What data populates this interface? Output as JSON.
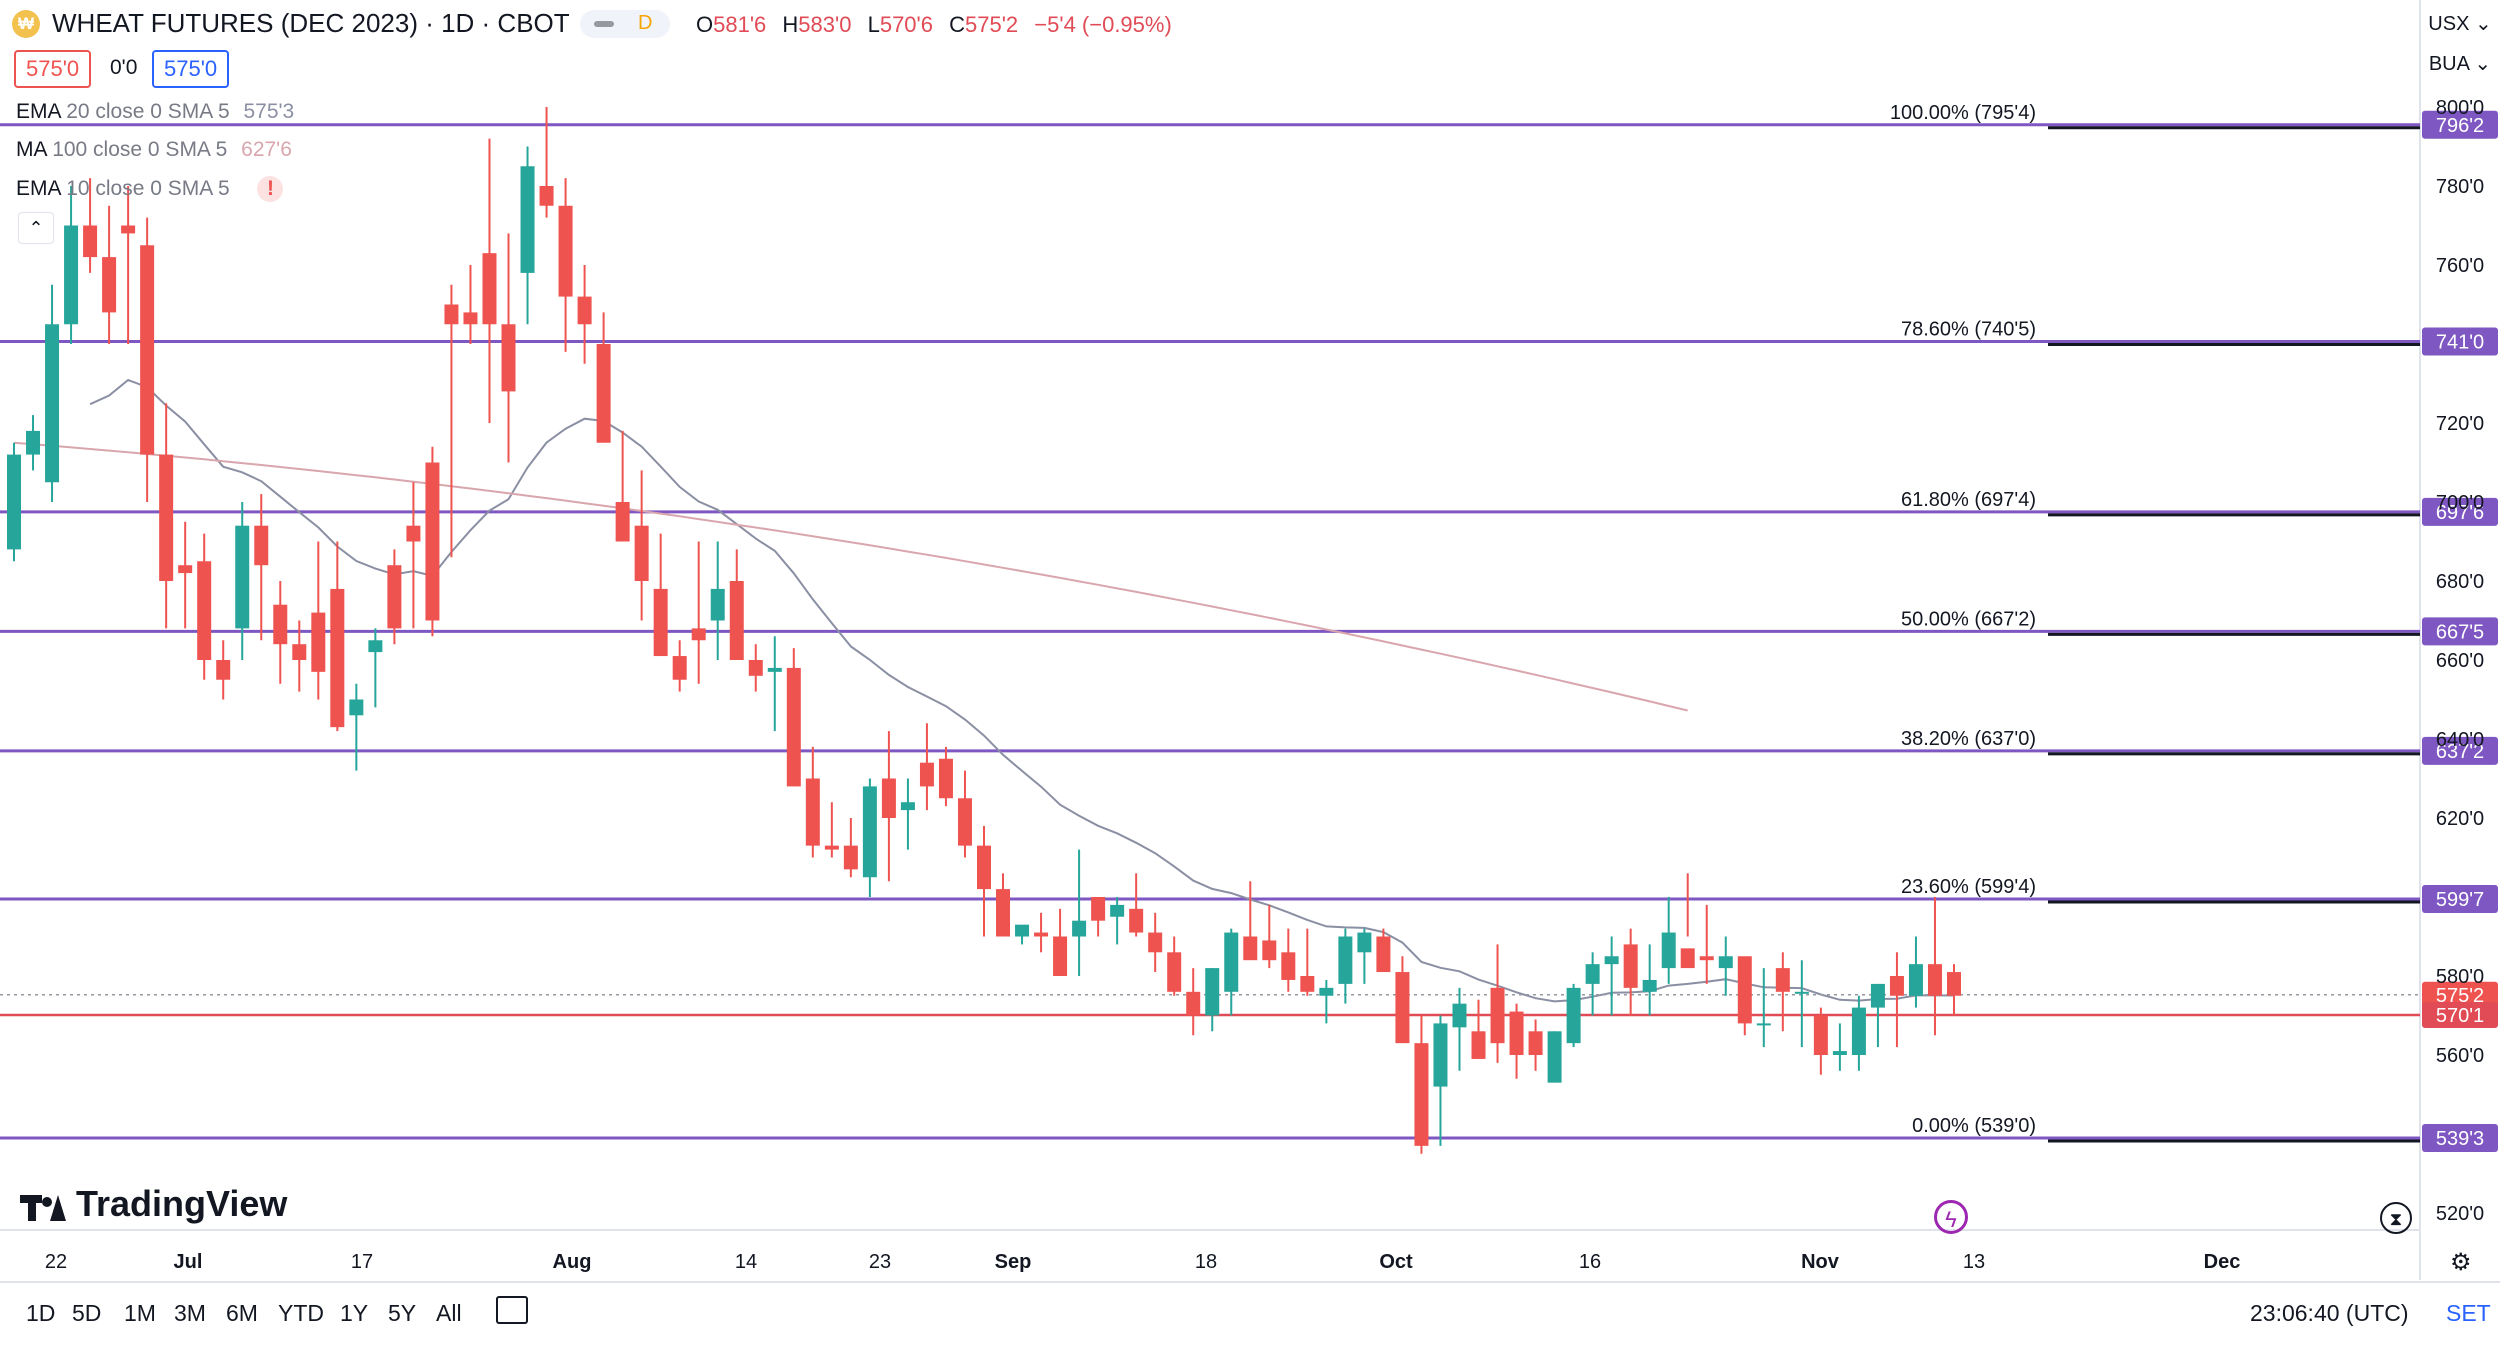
{
  "header": {
    "title": "WHEAT FUTURES (DEC 2023) · 1D · CBOT",
    "interval_badge": "D",
    "ohlc": {
      "o_label": "O",
      "o": "581'6",
      "h_label": "H",
      "h": "583'0",
      "l_label": "L",
      "l": "570'6",
      "c_label": "C",
      "c": "575'2",
      "change": "−5'4 (−0.95%)"
    },
    "sell_price": "575'0",
    "spread": "0'0",
    "buy_price": "575'0"
  },
  "indicators": [
    {
      "name": "EMA",
      "params": "20 close 0 SMA 5",
      "value": "575'3"
    },
    {
      "name": "MA",
      "params": "100 close 0 SMA 5",
      "value": "627'6"
    },
    {
      "name": "EMA",
      "params": "10 close 0 SMA 5",
      "value": "!"
    }
  ],
  "top_right": {
    "currency": "USX ⌄",
    "unit": "BUA ⌄"
  },
  "brand": {
    "logo_text": "TradingView"
  },
  "toolbar": {
    "ranges": [
      "1D",
      "5D",
      "1M",
      "3M",
      "6M",
      "YTD",
      "1Y",
      "5Y",
      "All"
    ],
    "clock": "23:06:40 (UTC)",
    "session": "SET"
  },
  "colors": {
    "up": "#26a69a",
    "down": "#ef5350",
    "fib": "#7e57c2",
    "ema20": "#8a8fa3",
    "ma100": "#d9a6ad",
    "price_line": "#e04b55"
  },
  "chart_data": {
    "type": "candlestick",
    "title": "WHEAT FUTURES (DEC 2023) · 1D · CBOT",
    "y_axis": {
      "ticks": [
        "800'0",
        "780'0",
        "760'0",
        "720'0",
        "700'0",
        "680'0",
        "660'0",
        "640'0",
        "620'0",
        "580'0",
        "560'0",
        "520'0"
      ],
      "tick_values": [
        800,
        780,
        760,
        720,
        700,
        680,
        660,
        640,
        620,
        580,
        560,
        520
      ]
    },
    "x_axis": {
      "ticks": [
        "22",
        "Jul",
        "17",
        "Aug",
        "14",
        "23",
        "Sep",
        "18",
        "Oct",
        "16",
        "Nov",
        "13",
        "Dec"
      ]
    },
    "fib_levels": [
      {
        "label": "100.00% (795'4)",
        "price": 795.5,
        "tag": "796'2"
      },
      {
        "label": "78.60% (740'5)",
        "price": 740.625,
        "tag": "741'0"
      },
      {
        "label": "61.80% (697'4)",
        "price": 697.5,
        "tag": "697'6"
      },
      {
        "label": "50.00% (667'2)",
        "price": 667.25,
        "tag": "667'5"
      },
      {
        "label": "38.20% (637'0)",
        "price": 637.0,
        "tag": "637'2"
      },
      {
        "label": "23.60% (599'4)",
        "price": 599.5,
        "tag": "599'7"
      },
      {
        "label": "0.00% (539'0)",
        "price": 539.0,
        "tag": "539'3"
      }
    ],
    "last_price": {
      "value": 575.25,
      "tag": "575'2"
    },
    "price_line": {
      "value": 570.125,
      "tag": "570'1"
    },
    "candles_ohlc": [
      [
        688,
        715,
        685,
        712
      ],
      [
        712,
        722,
        708,
        718
      ],
      [
        705,
        755,
        700,
        745
      ],
      [
        745,
        780,
        740,
        770
      ],
      [
        770,
        782,
        758,
        762
      ],
      [
        762,
        775,
        740,
        748
      ],
      [
        770,
        780,
        740,
        768
      ],
      [
        765,
        772,
        700,
        712
      ],
      [
        712,
        725,
        668,
        680
      ],
      [
        684,
        695,
        668,
        682
      ],
      [
        685,
        692,
        655,
        660
      ],
      [
        660,
        665,
        650,
        655
      ],
      [
        668,
        700,
        660,
        694
      ],
      [
        694,
        702,
        665,
        684
      ],
      [
        674,
        680,
        654,
        664
      ],
      [
        664,
        670,
        652,
        660
      ],
      [
        672,
        690,
        650,
        657
      ],
      [
        678,
        690,
        642,
        643
      ],
      [
        646,
        654,
        632,
        650
      ],
      [
        662,
        668,
        648,
        665
      ],
      [
        684,
        688,
        664,
        668
      ],
      [
        694,
        705,
        668,
        690
      ],
      [
        710,
        714,
        666,
        670
      ],
      [
        750,
        755,
        686,
        745
      ],
      [
        748,
        760,
        740,
        745
      ],
      [
        763,
        792,
        720,
        745
      ],
      [
        745,
        768,
        710,
        728
      ],
      [
        758,
        790,
        745,
        785
      ],
      [
        780,
        800,
        772,
        775
      ],
      [
        775,
        782,
        738,
        752
      ],
      [
        752,
        760,
        735,
        745
      ],
      [
        740,
        748,
        725,
        715
      ],
      [
        700,
        718,
        690,
        690
      ],
      [
        694,
        708,
        670,
        680
      ],
      [
        678,
        692,
        662,
        661
      ],
      [
        661,
        665,
        652,
        655
      ],
      [
        668,
        690,
        654,
        665
      ],
      [
        670,
        690,
        660,
        678
      ],
      [
        680,
        688,
        662,
        660
      ],
      [
        660,
        664,
        652,
        656
      ],
      [
        657,
        666,
        642,
        658
      ],
      [
        658,
        663,
        628,
        628
      ],
      [
        630,
        638,
        610,
        613
      ],
      [
        613,
        624,
        610,
        612
      ],
      [
        613,
        620,
        605,
        607
      ],
      [
        605,
        630,
        600,
        628
      ],
      [
        630,
        642,
        604,
        620
      ],
      [
        622,
        630,
        612,
        624
      ],
      [
        634,
        644,
        622,
        628
      ],
      [
        635,
        638,
        623,
        625
      ],
      [
        625,
        632,
        610,
        613
      ],
      [
        613,
        618,
        590,
        602
      ],
      [
        602,
        606,
        595,
        590
      ],
      [
        590,
        592,
        588,
        593
      ],
      [
        591,
        596,
        586,
        590
      ],
      [
        590,
        597,
        584,
        580
      ],
      [
        590,
        612,
        580,
        594
      ],
      [
        600,
        600,
        590,
        594
      ],
      [
        595,
        600,
        588,
        598
      ],
      [
        597,
        606,
        590,
        591
      ],
      [
        591,
        596,
        581,
        586
      ],
      [
        586,
        590,
        575,
        576
      ],
      [
        576,
        582,
        565,
        570
      ],
      [
        570,
        582,
        566,
        582
      ],
      [
        576,
        592,
        570,
        591
      ],
      [
        590,
        604,
        585,
        584
      ],
      [
        589,
        598,
        582,
        584
      ],
      [
        586,
        592,
        576,
        579
      ],
      [
        580,
        592,
        575,
        576
      ],
      [
        575,
        579,
        568,
        577
      ],
      [
        578,
        592,
        573,
        590
      ],
      [
        586,
        592,
        578,
        591
      ],
      [
        590,
        592,
        582,
        581
      ],
      [
        581,
        585,
        565,
        563
      ],
      [
        563,
        570,
        535,
        537
      ],
      [
        552,
        570,
        537,
        568
      ],
      [
        567,
        577,
        556,
        573
      ],
      [
        566,
        574,
        560,
        559
      ],
      [
        577,
        588,
        558,
        563
      ],
      [
        571,
        573,
        554,
        560
      ],
      [
        566,
        569,
        556,
        560
      ],
      [
        553,
        566,
        553,
        566
      ],
      [
        563,
        578,
        562,
        577
      ],
      [
        578,
        586,
        570,
        583
      ],
      [
        583,
        590,
        570,
        585
      ],
      [
        588,
        592,
        570,
        577
      ],
      [
        576,
        588,
        570,
        579
      ],
      [
        582,
        600,
        578,
        591
      ],
      [
        587,
        606,
        590,
        582
      ],
      [
        585,
        598,
        578,
        584
      ],
      [
        582,
        590,
        575,
        585
      ],
      [
        585,
        582,
        565,
        568
      ],
      [
        568,
        582,
        562,
        568
      ],
      [
        582,
        586,
        566,
        576
      ],
      [
        576,
        584,
        562,
        576
      ],
      [
        570,
        572,
        555,
        560
      ],
      [
        560,
        568,
        556,
        561
      ],
      [
        560,
        575,
        556,
        572
      ],
      [
        572,
        578,
        562,
        578
      ],
      [
        580,
        586,
        562,
        575
      ],
      [
        575,
        590,
        572,
        583
      ],
      [
        583,
        600,
        565,
        575
      ],
      [
        581,
        583,
        570,
        575
      ]
    ],
    "ema20_approx": "smoothed close, 575'3 latest",
    "ma100_approx": "627'6 latest",
    "legend": "top-left"
  }
}
